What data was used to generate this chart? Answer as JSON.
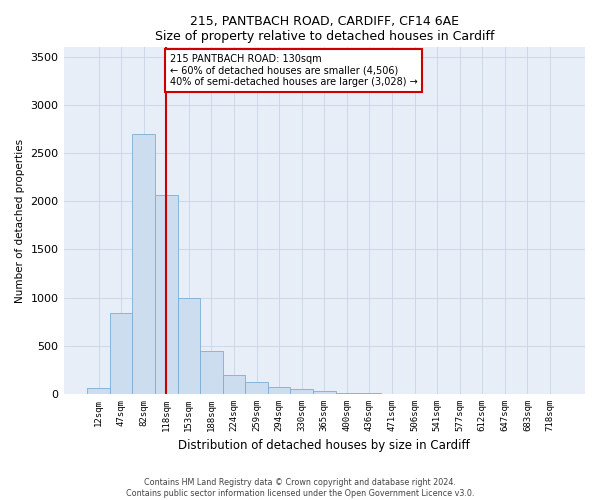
{
  "title1": "215, PANTBACH ROAD, CARDIFF, CF14 6AE",
  "title2": "Size of property relative to detached houses in Cardiff",
  "xlabel": "Distribution of detached houses by size in Cardiff",
  "ylabel": "Number of detached properties",
  "categories": [
    "12sqm",
    "47sqm",
    "82sqm",
    "118sqm",
    "153sqm",
    "188sqm",
    "224sqm",
    "259sqm",
    "294sqm",
    "330sqm",
    "365sqm",
    "400sqm",
    "436sqm",
    "471sqm",
    "506sqm",
    "541sqm",
    "577sqm",
    "612sqm",
    "647sqm",
    "683sqm",
    "718sqm"
  ],
  "values": [
    60,
    840,
    2700,
    2060,
    1000,
    450,
    200,
    130,
    70,
    55,
    30,
    15,
    10,
    5,
    3,
    2,
    1,
    1,
    1,
    1,
    0
  ],
  "bar_color": "#cdddf0",
  "bar_edge_color": "#7aadd4",
  "grid_color": "#c8d4e8",
  "background_color": "#e8eef8",
  "annotation_line1": "215 PANTBACH ROAD: 130sqm",
  "annotation_line2": "← 60% of detached houses are smaller (4,506)",
  "annotation_line3": "40% of semi-detached houses are larger (3,028) →",
  "annotation_box_color": "#ffffff",
  "annotation_box_edge": "#cc0000",
  "vline_color": "#cc0000",
  "vline_x": 3.0,
  "ylim": [
    0,
    3600
  ],
  "yticks": [
    0,
    500,
    1000,
    1500,
    2000,
    2500,
    3000,
    3500
  ],
  "footnote1": "Contains HM Land Registry data © Crown copyright and database right 2024.",
  "footnote2": "Contains public sector information licensed under the Open Government Licence v3.0."
}
